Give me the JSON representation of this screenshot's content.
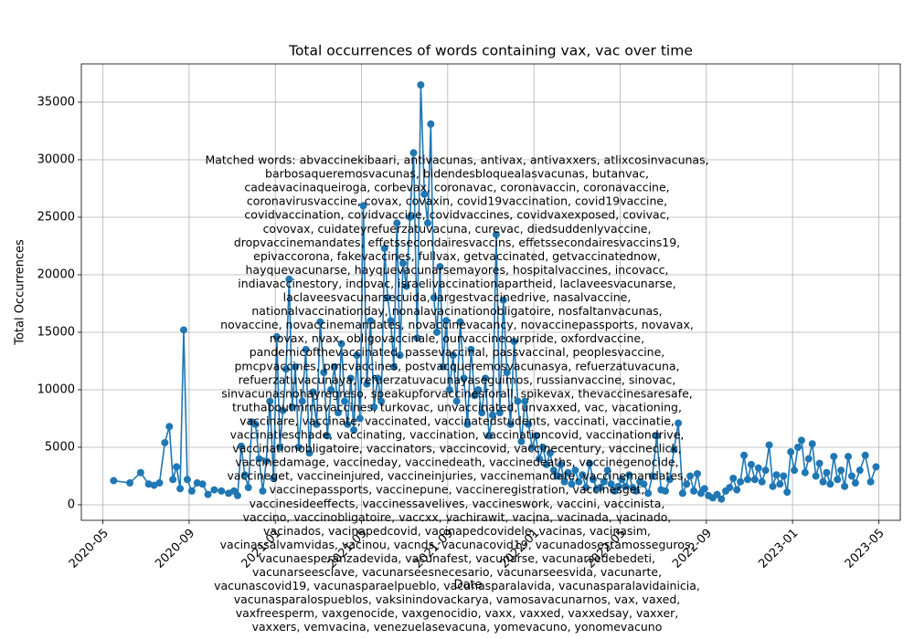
{
  "chart_data": {
    "type": "line",
    "title": "Total occurrences of words containing vax, vac over time",
    "x_label": "Date",
    "y_label": "Total Occurrences",
    "color": "#1f77b4",
    "grid": true,
    "xlim": [
      "2020-04",
      "2023-06"
    ],
    "xticks": [
      "2020-05",
      "2020-09",
      "2021-01",
      "2021-05",
      "2021-09",
      "2022-01",
      "2022-05",
      "2022-09",
      "2023-01",
      "2023-05"
    ],
    "ylim": [
      -1350,
      38330
    ],
    "yticks": [
      0,
      5000,
      10000,
      15000,
      20000,
      25000,
      30000,
      35000
    ],
    "x": [
      "2020-05",
      "2020-06",
      "2020-06",
      "2020-07",
      "2020-07",
      "2020-07",
      "2020-07",
      "2020-08",
      "2020-08",
      "2020-08",
      "2020-08",
      "2020-08",
      "2020-08",
      "2020-09",
      "2020-09",
      "2020-09",
      "2020-09",
      "2020-10",
      "2020-10",
      "2020-10",
      "2020-11",
      "2020-11",
      "2020-11",
      "2020-11",
      "2020-11",
      "2020-11",
      "2020-12",
      "2020-12",
      "2020-12",
      "2020-12",
      "2020-12",
      "2020-12",
      "2021-01",
      "2021-01",
      "2021-01",
      "2021-01",
      "2021-01",
      "2021-01",
      "2021-01",
      "2021-02",
      "2021-02",
      "2021-02",
      "2021-02",
      "2021-02",
      "2021-02",
      "2021-03",
      "2021-03",
      "2021-03",
      "2021-03",
      "2021-03",
      "2021-03",
      "2021-04",
      "2021-04",
      "2021-04",
      "2021-04",
      "2021-04",
      "2021-04",
      "2021-04",
      "2021-05",
      "2021-05",
      "2021-05",
      "2021-05",
      "2021-05",
      "2021-05",
      "2021-06",
      "2021-06",
      "2021-06",
      "2021-06",
      "2021-06",
      "2021-06",
      "2021-06",
      "2021-07",
      "2021-07",
      "2021-07",
      "2021-07",
      "2021-07",
      "2021-07",
      "2021-08",
      "2021-08",
      "2021-08",
      "2021-08",
      "2021-08",
      "2021-08",
      "2021-08",
      "2021-09",
      "2021-09",
      "2021-09",
      "2021-09",
      "2021-09",
      "2021-09",
      "2021-10",
      "2021-10",
      "2021-10",
      "2021-10",
      "2021-10",
      "2021-10",
      "2021-11",
      "2021-11",
      "2021-11",
      "2021-11",
      "2021-11",
      "2021-11",
      "2021-12",
      "2021-12",
      "2021-12",
      "2021-12",
      "2021-12",
      "2021-12",
      "2022-01",
      "2022-01",
      "2022-01",
      "2022-01",
      "2022-01",
      "2022-01",
      "2022-02",
      "2022-02",
      "2022-02",
      "2022-02",
      "2022-02",
      "2022-02",
      "2022-03",
      "2022-03",
      "2022-03",
      "2022-03",
      "2022-03",
      "2022-03",
      "2022-04",
      "2022-04",
      "2022-04",
      "2022-04",
      "2022-04",
      "2022-04",
      "2022-05",
      "2022-05",
      "2022-05",
      "2022-05",
      "2022-05",
      "2022-05",
      "2022-06",
      "2022-06",
      "2022-06",
      "2022-06",
      "2022-06",
      "2022-07",
      "2022-07",
      "2022-07",
      "2022-07",
      "2022-07",
      "2022-08",
      "2022-08",
      "2022-08",
      "2022-08",
      "2022-08",
      "2022-08",
      "2022-09",
      "2022-09",
      "2022-09",
      "2022-09",
      "2022-09",
      "2022-10",
      "2022-10",
      "2022-10",
      "2022-10",
      "2022-10",
      "2022-10",
      "2022-11",
      "2022-11",
      "2022-11",
      "2022-11",
      "2022-11",
      "2022-11",
      "2022-12",
      "2022-12",
      "2022-12",
      "2022-12",
      "2022-12",
      "2022-12",
      "2023-01",
      "2023-01",
      "2023-01",
      "2023-01",
      "2023-01",
      "2023-01",
      "2023-02",
      "2023-02",
      "2023-02",
      "2023-02",
      "2023-02",
      "2023-02",
      "2023-03",
      "2023-03",
      "2023-03",
      "2023-03",
      "2023-03",
      "2023-03",
      "2023-04",
      "2023-04",
      "2023-04",
      "2023-04"
    ],
    "values": [
      2100,
      1900,
      2800,
      1800,
      1700,
      1900,
      5400,
      6800,
      2200,
      3300,
      1400,
      15200,
      2200,
      1200,
      1900,
      1800,
      900,
      1300,
      1200,
      1000,
      1200,
      800,
      5100,
      2600,
      1500,
      7200,
      7000,
      4000,
      1200,
      3800,
      9000,
      2300,
      14600,
      5000,
      8200,
      11800,
      19600,
      8500,
      12000,
      5000,
      9000,
      13500,
      4500,
      9800,
      7000,
      15900,
      11500,
      6000,
      10000,
      12000,
      8000,
      14000,
      9000,
      7000,
      11000,
      6500,
      13000,
      7500,
      26000,
      10500,
      16000,
      8500,
      11000,
      9000,
      22300,
      18000,
      16000,
      12000,
      24500,
      13000,
      21000,
      19000,
      25000,
      30600,
      14500,
      36500,
      27000,
      24500,
      33100,
      18000,
      15000,
      20700,
      12000,
      16000,
      10000,
      13000,
      9000,
      15900,
      11000,
      7000,
      13500,
      9500,
      10000,
      8000,
      11000,
      6000,
      7800,
      23500,
      8000,
      17800,
      11500,
      7000,
      14200,
      9000,
      5500,
      9000,
      7000,
      5000,
      6000,
      4000,
      5000,
      3500,
      4500,
      3000,
      2500,
      3500,
      2000,
      2800,
      1800,
      3000,
      2000,
      2600,
      1500,
      3600,
      2200,
      1400,
      1500,
      2000,
      3000,
      1800,
      1200,
      1600,
      2200,
      1600,
      2600,
      1500,
      1200,
      2000,
      1800,
      1000,
      2500,
      6000,
      1300,
      1200,
      2200,
      4800,
      7100,
      1000,
      1800,
      2500,
      1200,
      2700,
      1000,
      1400,
      800,
      600,
      900,
      500,
      1200,
      1500,
      2300,
      1300,
      2000,
      4300,
      2200,
      3500,
      2200,
      3200,
      2000,
      3000,
      5200,
      1600,
      2600,
      1800,
      2500,
      1100,
      4600,
      3000,
      5000,
      5600,
      2800,
      4000,
      5300,
      2500,
      3600,
      2000,
      2800,
      1800,
      4200,
      2200,
      3000,
      1600,
      4200,
      2500,
      1900,
      3000,
      4300,
      2000,
      3300
    ],
    "annotation_lines": [
      "Matched words: abvaccinekibaari, antivacunas, antivax, antivaxxers, atlixcosinvacunas,",
      "barbosaqueremosvacunas, bidendesbloquealasvacunas, butanvac,",
      "cadeavacinaqueiroga, corbevax, coronavac, coronavaccin, coronavaccine,",
      "coronavirusvaccine, covax, covaxin, covid19vaccination, covid19vaccine,",
      "covidvaccination, covidvaccine, covidvaccines, covidvaxexposed, covivac,",
      "covovax, cuidateyrefuerzatuvacuna, curevac, diedsuddenlyvaccine,",
      "dropvaccinemandates, effetssecondairesvaccins, effetssecondairesvaccins19,",
      "epivaccorona, fakevaccines, fullvax, getvaccinated, getvaccinatednow,",
      "hayquevacunarse, hayquevacunarsemayores, hospitalvaccines, incovacc,",
      "indiavaccinestory, indovac, israelivaccinationapartheid, laclaveesvacunarse,",
      "laclaveesvacunarsecuida, largestvaccinedrive, nasalvaccine,",
      "nationalvaccinationday, nonalavacinationobligatoire, nosfaltanvacunas,",
      "novaccine, novaccinemandates, novaccinevacancy, novaccinepassports, novavax,",
      "novax, nvax, obligovaccinale, ourvaccineourpride, oxfordvaccine,",
      "pandemicofthevaccinated, passevaccinal, passvaccinal, peoplesvaccine,",
      "pmcpvaccines, pmcvaccines, postvacqueremosvacunasya, refuerzatuvacuna,",
      "refuerzatuvacunaya, refuerzatuvacunayaseguimos, russianvaccine, sinovac,",
      "sinvacunasnohayregreso, speakupforvaccinesforall, spikevax, thevaccinesaresafe,",
      "truthaboutmrnavaccines, turkovac, unvaccinated, unvaxxed, vac, vacationing,",
      "vaccinare, vaccinate, vaccinated, vaccinatedstudents, vaccinati, vaccinatie,",
      "vaccinatieschade, vaccinating, vaccination, vaccinationcovid, vaccinationdrive,",
      "vaccinationobligatoire, vaccinators, vaccincovid, vaccinecentury, vaccineclick,",
      "vaccinedamage, vaccineday, vaccinedeath, vaccinedeaths, vaccinegenocide,",
      "vaccineget, vaccineinjured, vaccineinjuries, vaccinemandate, vaccinemandates,",
      "vaccinepassports, vaccinepune, vaccineregistration, vaccinesget,",
      "vaccinesideeffects, vaccinessavelives, vaccineswork, vaccini, vaccinista,",
      "vaccino, vaccinobligatoire, vaccxx, vachirawit, vacina, vacinada, vacinado,",
      "vacinados, vacinapedcovid, vacinapedcovidele, vacinas, vacinasim,",
      "vacinassalvamvidas, vacinou, vacnds, vacunacovid19, vacunadosestamosseguros,",
      "vacunaesperanzadevida, vacunafest, vacunarse, vacunarsedebedeti,",
      "vacunarseesclave, vacunarseesnecesario, vacunarseesvida, vacunarte,",
      "vacunascovid19, vacunasparaelpueblo, vacunasparalavida, vacunasparalavidainicia,",
      "vacunasparalospueblos, vaksinindovackarya, vamosavacunarnos, vax, vaxed,",
      "vaxfreesperm, vaxgenocide, vaxgenocidio, vaxx, vaxxed, vaxxedsay, vaxxer,",
      "vaxxers, vemvacina, venezuelasevacuna, yomevacuno, yonomevacuno"
    ]
  }
}
